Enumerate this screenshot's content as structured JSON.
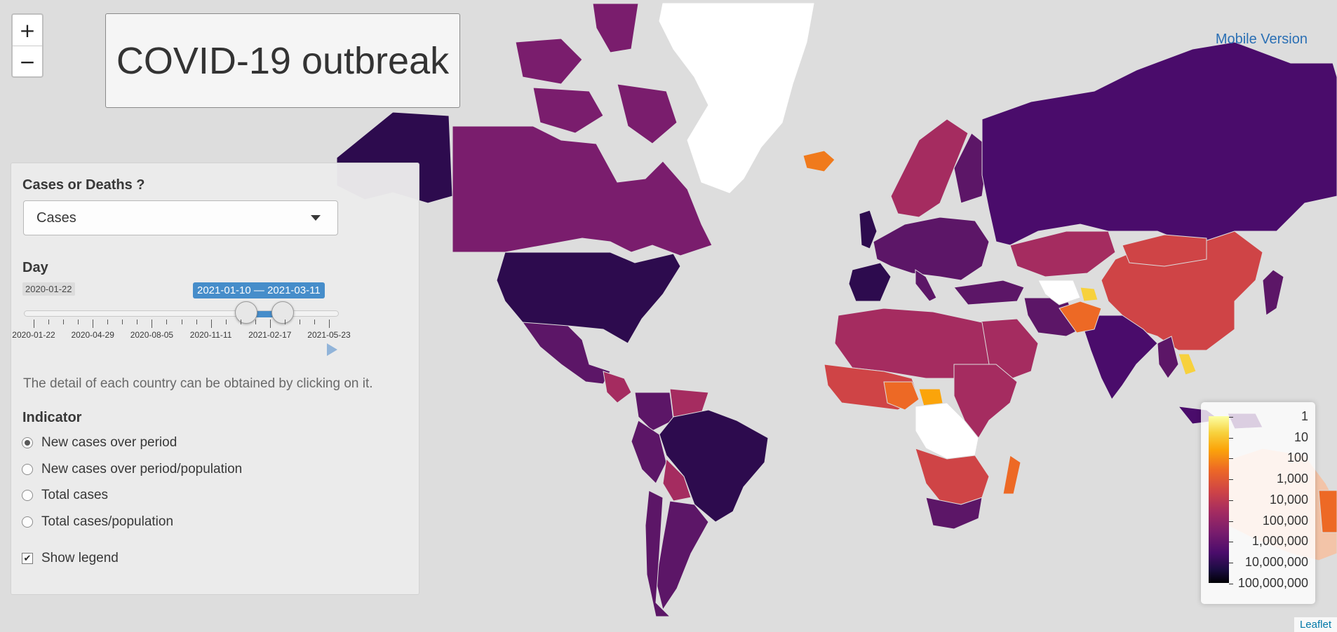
{
  "title": "COVID-19 outbreak",
  "zoom": {
    "in_label": "+",
    "out_label": "−"
  },
  "mobile_link": "Mobile Version",
  "panel": {
    "measure_label": "Cases or Deaths ?",
    "measure_value": "Cases",
    "day_label": "Day",
    "slider": {
      "min_date": "2020-01-22",
      "range_label": "2021-01-10 — 2021-03-11",
      "range_start": "2021-01-10",
      "range_end": "2021-03-11",
      "tick_labels": [
        "2020-01-22",
        "2020-04-29",
        "2020-08-05",
        "2020-11-11",
        "2021-02-17",
        "2021-05-23"
      ]
    },
    "detail_text": "The detail of each country can be obtained by clicking on it.",
    "indicator_label": "Indicator",
    "indicators": [
      {
        "label": "New cases over period",
        "selected": true
      },
      {
        "label": "New cases over period/population",
        "selected": false
      },
      {
        "label": "Total cases",
        "selected": false
      },
      {
        "label": "Total cases/population",
        "selected": false
      }
    ],
    "show_legend_label": "Show legend",
    "show_legend_checked": true
  },
  "legend": {
    "labels": [
      "1",
      "10",
      "100",
      "1,000",
      "10,000",
      "100,000",
      "1,000,000",
      "10,000,000",
      "100,000,000"
    ],
    "scale": "log",
    "palette": [
      "#fcffa4",
      "#f7d13d",
      "#fba40a",
      "#ed6925",
      "#cf4446",
      "#a52c60",
      "#781c6d",
      "#4a0c6b",
      "#1b0c41",
      "#000004"
    ]
  },
  "attribution": "Leaflet",
  "colors": {
    "ocean": "#dddddd",
    "no_data": "#ffffff",
    "accent": "#428bca"
  }
}
